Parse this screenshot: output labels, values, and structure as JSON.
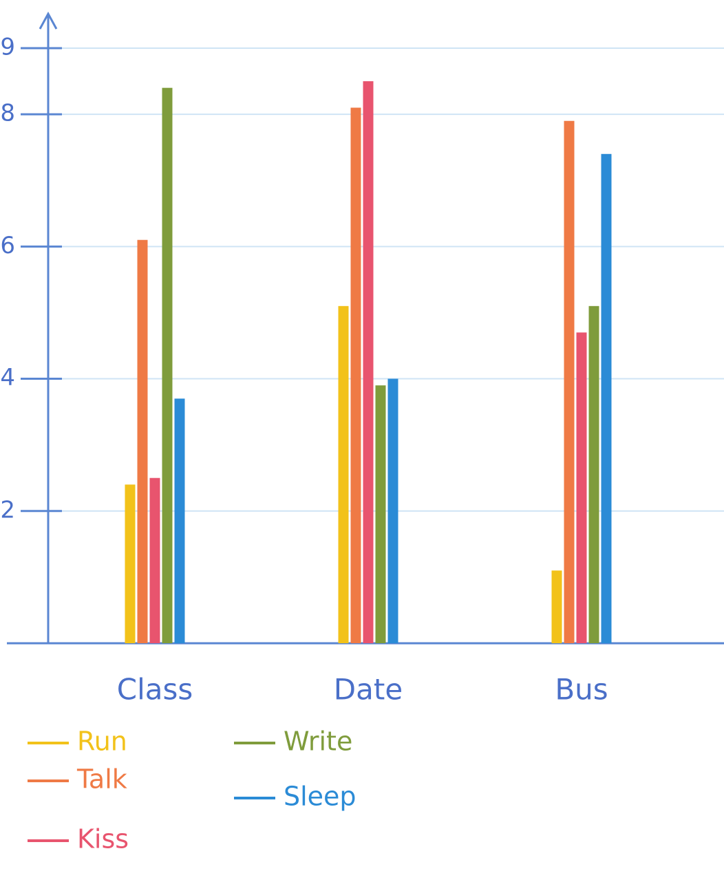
{
  "chart_data": {
    "type": "bar",
    "categories": [
      "Class",
      "Date",
      "Bus"
    ],
    "series": [
      {
        "name": "Run",
        "color": "#f2c21a",
        "values": [
          2.4,
          5.1,
          1.1
        ]
      },
      {
        "name": "Talk",
        "color": "#ef7a45",
        "values": [
          6.1,
          8.1,
          7.9
        ]
      },
      {
        "name": "Kiss",
        "color": "#e8546e",
        "values": [
          2.5,
          8.5,
          4.7
        ]
      },
      {
        "name": "Write",
        "color": "#7f9c3c",
        "values": [
          8.4,
          3.9,
          5.1
        ]
      },
      {
        "name": "Sleep",
        "color": "#2b8bd6",
        "values": [
          3.7,
          4.0,
          7.4
        ]
      }
    ],
    "ylim": [
      0,
      9
    ],
    "yticks": [
      2,
      4,
      6,
      8,
      9
    ],
    "grid": true
  }
}
